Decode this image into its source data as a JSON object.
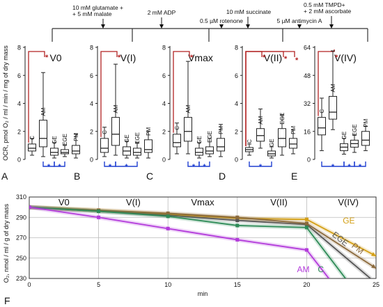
{
  "chart_data": [
    {
      "type": "box",
      "ylabel": "OCR, pmol O₂ / ml / min / mg of dry mass",
      "categories": [
        "C",
        "AM",
        "GE",
        "EGE",
        "PM"
      ],
      "treatments": [
        {
          "text": "10 mM glutamate +\n+ 5 mM malate"
        },
        {
          "text": "2 mM ADP"
        },
        {
          "text": "0.5 µM rotenone"
        },
        {
          "text": "10 mM succinate"
        },
        {
          "text": "5 µM antimycin A"
        },
        {
          "text": "0.5 mM TMPD+\n+ 2 mM ascorbate"
        }
      ],
      "panels": [
        {
          "letter": "A",
          "title": "V0",
          "ylim": [
            0,
            8
          ],
          "yticks": [
            0,
            2,
            4,
            6,
            8
          ],
          "star": "*",
          "boxes": [
            {
              "min": 0.3,
              "q1": 0.6,
              "median": 0.8,
              "q3": 1.1,
              "max": 1.5
            },
            {
              "min": 0.2,
              "q1": 0.9,
              "median": 1.5,
              "q3": 2.8,
              "max": 6.2
            },
            {
              "min": 0.1,
              "q1": 0.3,
              "median": 0.5,
              "q3": 0.8,
              "max": 1.2
            },
            {
              "min": 0.2,
              "q1": 0.4,
              "median": 0.5,
              "q3": 0.7,
              "max": 1.0
            },
            {
              "min": 0.1,
              "q1": 0.4,
              "median": 0.6,
              "q3": 1.0,
              "max": 1.8
            }
          ],
          "red_brackets": [
            [
              0,
              1
            ]
          ],
          "blue_brackets": [
            [
              1,
              2
            ],
            [
              2,
              3
            ]
          ]
        },
        {
          "letter": "B",
          "title": "V(I)",
          "ylim": [
            0,
            8
          ],
          "yticks": [
            0,
            2,
            4,
            6,
            8
          ],
          "star": "*",
          "boxes": [
            {
              "min": 0.2,
              "q1": 0.5,
              "median": 0.8,
              "q3": 1.5,
              "max": 2.3
            },
            {
              "min": 0.3,
              "q1": 1.0,
              "median": 1.8,
              "q3": 3.0,
              "max": 6.8
            },
            {
              "min": 0.1,
              "q1": 0.3,
              "median": 0.6,
              "q3": 0.9,
              "max": 1.3
            },
            {
              "min": 0.1,
              "q1": 0.3,
              "median": 0.5,
              "q3": 0.8,
              "max": 1.2
            },
            {
              "min": 0.1,
              "q1": 0.5,
              "median": 0.7,
              "q3": 1.4,
              "max": 2.0
            }
          ],
          "red_brackets": [
            [
              0,
              1
            ]
          ],
          "blue_brackets": [
            [
              0,
              1
            ],
            [
              1,
              3
            ]
          ]
        },
        {
          "letter": "C",
          "title": "Vmax",
          "ylim": [
            0,
            8
          ],
          "yticks": [
            0,
            2,
            4,
            6,
            8
          ],
          "star": "*",
          "boxes": [
            {
              "min": 0.4,
              "q1": 0.9,
              "median": 1.2,
              "q3": 1.8,
              "max": 2.6
            },
            {
              "min": 0.4,
              "q1": 1.3,
              "median": 2.0,
              "q3": 3.0,
              "max": 7.0
            },
            {
              "min": 0.1,
              "q1": 0.3,
              "median": 0.5,
              "q3": 0.8,
              "max": 1.2
            },
            {
              "min": 0.2,
              "q1": 0.4,
              "median": 0.6,
              "q3": 0.9,
              "max": 1.5
            },
            {
              "min": 0.2,
              "q1": 0.6,
              "median": 0.9,
              "q3": 1.5,
              "max": 2.5
            }
          ],
          "red_brackets": [
            [
              0,
              1
            ]
          ],
          "blue_brackets": [
            [
              1,
              2
            ],
            [
              2,
              3
            ]
          ]
        },
        {
          "letter": "D",
          "title": "V(II)",
          "ylim": [
            0,
            8
          ],
          "yticks": [
            0,
            2,
            4,
            6,
            8
          ],
          "star": "*",
          "boxes": [
            {
              "min": 0.3,
              "q1": 0.55,
              "median": 0.7,
              "q3": 0.85,
              "max": 1.1
            },
            {
              "min": 0.8,
              "q1": 1.3,
              "median": 1.7,
              "q3": 2.2,
              "max": 3.6
            },
            {
              "min": 0.1,
              "q1": 0.25,
              "median": 0.4,
              "q3": 0.6,
              "max": 0.9
            },
            {
              "min": 0.3,
              "q1": 0.9,
              "median": 1.5,
              "q3": 2.2,
              "max": 3.2
            },
            {
              "min": 0.4,
              "q1": 0.8,
              "median": 1.1,
              "q3": 1.5,
              "max": 2.1
            }
          ],
          "red_brackets": [
            [
              0,
              1
            ],
            [
              0,
              3
            ],
            [
              0,
              4
            ]
          ],
          "blue_brackets": [
            [
              0,
              2
            ]
          ]
        },
        {
          "letter": "E",
          "title": "V(IV)",
          "ylim": [
            0,
            64
          ],
          "yticks": [
            0,
            16,
            32,
            48,
            64
          ],
          "star": "*",
          "boxes": [
            {
              "min": 5,
              "q1": 14,
              "median": 18,
              "q3": 24,
              "max": 35
            },
            {
              "min": 17,
              "q1": 23,
              "median": 27,
              "q3": 36,
              "max": 62
            },
            {
              "min": 3,
              "q1": 5,
              "median": 7,
              "q3": 9,
              "max": 12
            },
            {
              "min": 4,
              "q1": 7,
              "median": 9,
              "q3": 11,
              "max": 14
            },
            {
              "min": 5,
              "q1": 8,
              "median": 11,
              "q3": 16,
              "max": 19
            }
          ],
          "red_brackets": [
            [
              0,
              1
            ]
          ],
          "blue_brackets": [
            [
              0,
              2
            ],
            [
              2,
              3
            ],
            [
              3,
              4
            ]
          ]
        }
      ]
    },
    {
      "type": "line",
      "panel_letter": "F",
      "xlabel": "min",
      "ylabel": "O₂, nmol / ml / g of dry mass",
      "xlim": [
        0,
        25
      ],
      "ylim": [
        230,
        310
      ],
      "xticks": [
        0,
        5,
        10,
        15,
        20,
        25
      ],
      "yticks": [
        230,
        250,
        270,
        290,
        310
      ],
      "phases": [
        "V0",
        "V(I)",
        "Vmax",
        "V(II)",
        "V(IV)"
      ],
      "series": [
        {
          "name": "GE",
          "color": "#d4a017",
          "x": [
            0,
            5,
            10,
            15,
            20,
            25
          ],
          "y": [
            300,
            297,
            293,
            289,
            288,
            252
          ]
        },
        {
          "name": "EGE",
          "color": "#555555",
          "x": [
            0,
            5,
            10,
            15,
            20,
            24.6
          ],
          "y": [
            300,
            296,
            292,
            287,
            283,
            230
          ]
        },
        {
          "name": "PM",
          "color": "#8b6a3c",
          "x": [
            0,
            5,
            10,
            15,
            20,
            25
          ],
          "y": [
            300,
            297,
            294,
            290,
            284,
            240
          ]
        },
        {
          "name": "C",
          "color": "#2e8b57",
          "x": [
            0,
            5,
            10,
            15,
            20,
            22.8
          ],
          "y": [
            300,
            296,
            291,
            282,
            280,
            230
          ]
        },
        {
          "name": "AM",
          "color": "#b33bdb",
          "x": [
            0,
            5,
            10,
            15,
            20,
            21.6
          ],
          "y": [
            300,
            290,
            279,
            268,
            258,
            230
          ]
        }
      ]
    }
  ]
}
